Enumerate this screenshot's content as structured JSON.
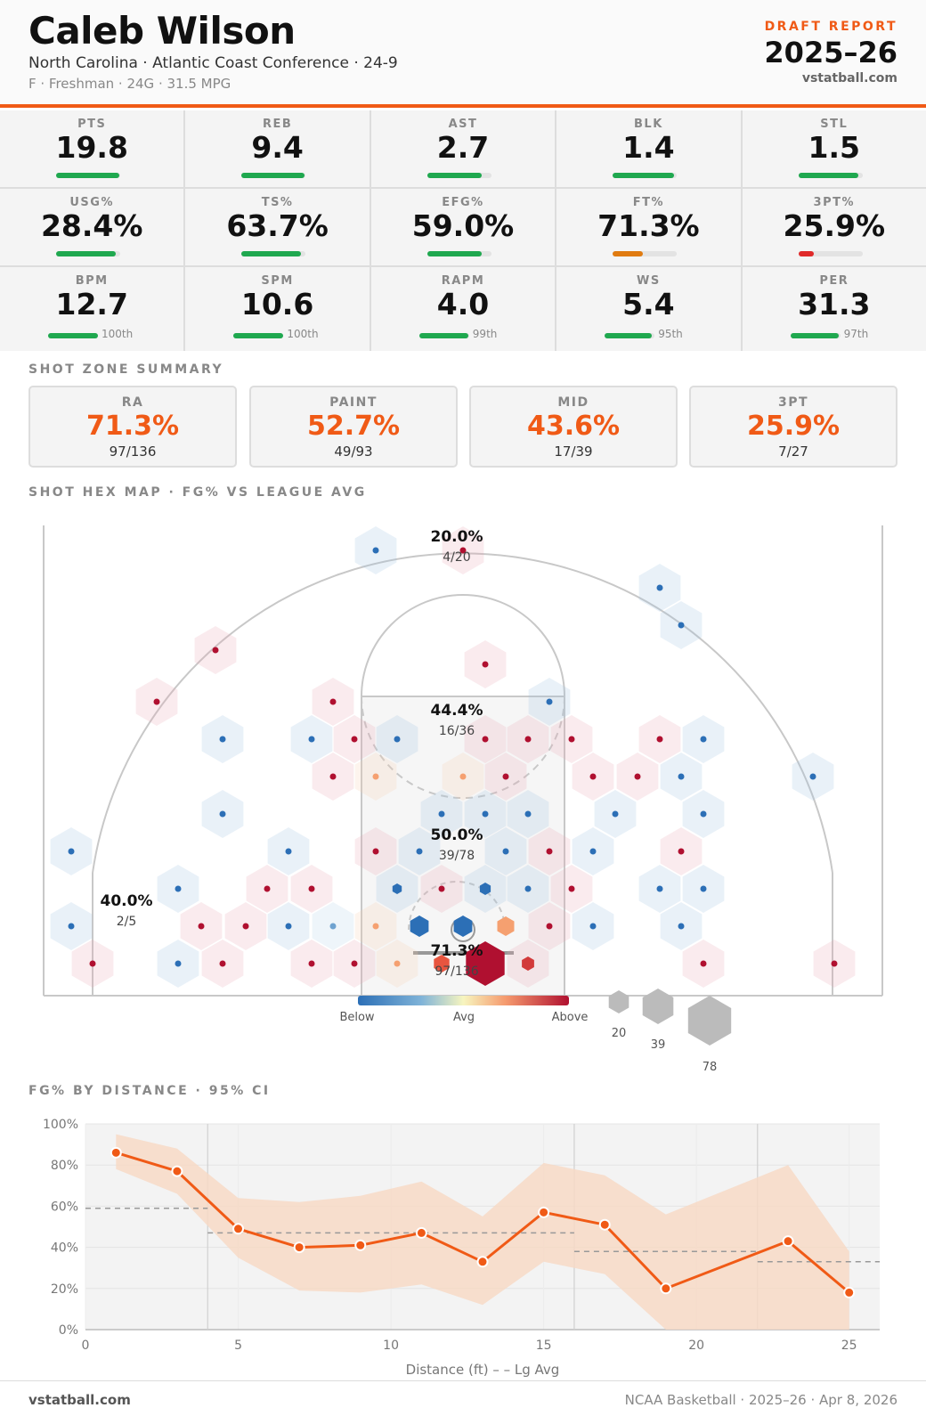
{
  "header": {
    "player_name": "Caleb Wilson",
    "subtitle": "North Carolina · Atlantic Coast Conference · 24-9",
    "meta": "F · Freshman · 24G · 31.5 MPG",
    "report_label": "DRAFT REPORT",
    "season": "2025–26",
    "site": "vstatball.com"
  },
  "stat_rows": [
    [
      {
        "label": "PTS",
        "value": "19.8",
        "bar": 0.98,
        "color": "#1fa84f"
      },
      {
        "label": "REB",
        "value": "9.4",
        "bar": 0.98,
        "color": "#1fa84f"
      },
      {
        "label": "AST",
        "value": "2.7",
        "bar": 0.85,
        "color": "#1fa84f"
      },
      {
        "label": "BLK",
        "value": "1.4",
        "bar": 0.95,
        "color": "#1fa84f"
      },
      {
        "label": "STL",
        "value": "1.5",
        "bar": 0.93,
        "color": "#1fa84f"
      }
    ],
    [
      {
        "label": "USG%",
        "value": "28.4%",
        "bar": 0.93,
        "color": "#1fa84f"
      },
      {
        "label": "TS%",
        "value": "63.7%",
        "bar": 0.92,
        "color": "#1fa84f"
      },
      {
        "label": "EFG%",
        "value": "59.0%",
        "bar": 0.85,
        "color": "#1fa84f"
      },
      {
        "label": "FT%",
        "value": "71.3%",
        "bar": 0.47,
        "color": "#e07b10"
      },
      {
        "label": "3PT%",
        "value": "25.9%",
        "bar": 0.24,
        "color": "#e02a2a"
      }
    ],
    [
      {
        "label": "BPM",
        "value": "12.7",
        "bar": 1.0,
        "color": "#1fa84f",
        "pct": "100th"
      },
      {
        "label": "SPM",
        "value": "10.6",
        "bar": 1.0,
        "color": "#1fa84f",
        "pct": "100th"
      },
      {
        "label": "RAPM",
        "value": "4.0",
        "bar": 0.99,
        "color": "#1fa84f",
        "pct": "99th"
      },
      {
        "label": "WS",
        "value": "5.4",
        "bar": 0.95,
        "color": "#1fa84f",
        "pct": "95th"
      },
      {
        "label": "PER",
        "value": "31.3",
        "bar": 0.97,
        "color": "#1fa84f",
        "pct": "97th"
      }
    ]
  ],
  "zones_title": "SHOT ZONE SUMMARY",
  "zones": [
    {
      "label": "RA",
      "value": "71.3%",
      "frac": "97/136"
    },
    {
      "label": "PAINT",
      "value": "52.7%",
      "frac": "49/93"
    },
    {
      "label": "MID",
      "value": "43.6%",
      "frac": "17/39"
    },
    {
      "label": "3PT",
      "value": "25.9%",
      "frac": "7/27"
    }
  ],
  "hexmap_title": "SHOT HEX MAP · FG% VS LEAGUE AVG",
  "hexmap": {
    "zone_labels": [
      {
        "pct": "20.0%",
        "frac": "4/20",
        "x": 513,
        "y": 602
      },
      {
        "pct": "44.4%",
        "frac": "16/36",
        "x": 513,
        "y": 797
      },
      {
        "pct": "50.0%",
        "frac": "39/78",
        "x": 513,
        "y": 937
      },
      {
        "pct": "40.0%",
        "frac": "2/5",
        "x": 142,
        "y": 1011
      },
      {
        "pct": "71.3%",
        "frac": "97/136",
        "x": 513,
        "y": 1067
      }
    ],
    "legend": {
      "below": "Below",
      "avg": "Avg",
      "above": "Above",
      "sizes": [
        "20",
        "39",
        "78"
      ]
    }
  },
  "distance_title": "FG% BY DISTANCE · 95% CI",
  "chart_data": {
    "type": "line",
    "title": "FG% BY DISTANCE · 95% CI",
    "xlabel": "Distance (ft) – – Lg Avg",
    "ylabel": "",
    "xlim": [
      0,
      26
    ],
    "ylim": [
      0,
      100
    ],
    "xticks": [
      "0",
      "5",
      "10",
      "15",
      "20",
      "25"
    ],
    "yticks": [
      "0%",
      "20%",
      "40%",
      "60%",
      "80%",
      "100%"
    ],
    "x": [
      1,
      3,
      5,
      7,
      9,
      11,
      13,
      15,
      17,
      19,
      23,
      25
    ],
    "values": [
      86,
      77,
      49,
      40,
      41,
      47,
      33,
      57,
      51,
      20,
      43,
      18
    ],
    "ci_low": [
      78,
      66,
      35,
      19,
      18,
      22,
      12,
      33,
      27,
      0,
      0,
      0
    ],
    "ci_high": [
      95,
      88,
      64,
      62,
      65,
      72,
      55,
      81,
      75,
      56,
      80,
      38
    ],
    "league_avg": [
      {
        "x": [
          0,
          4
        ],
        "y": 59
      },
      {
        "x": [
          4,
          16
        ],
        "y": 47
      },
      {
        "x": [
          16,
          22
        ],
        "y": 38
      },
      {
        "x": [
          22,
          26
        ],
        "y": 33
      }
    ],
    "grid": true,
    "colors": {
      "line": "#f05a16",
      "band": "#f7d9c6"
    }
  },
  "footer": {
    "left": "vstatball.com",
    "right": "NCAA Basketball · 2025–26 · Apr 8, 2026"
  }
}
